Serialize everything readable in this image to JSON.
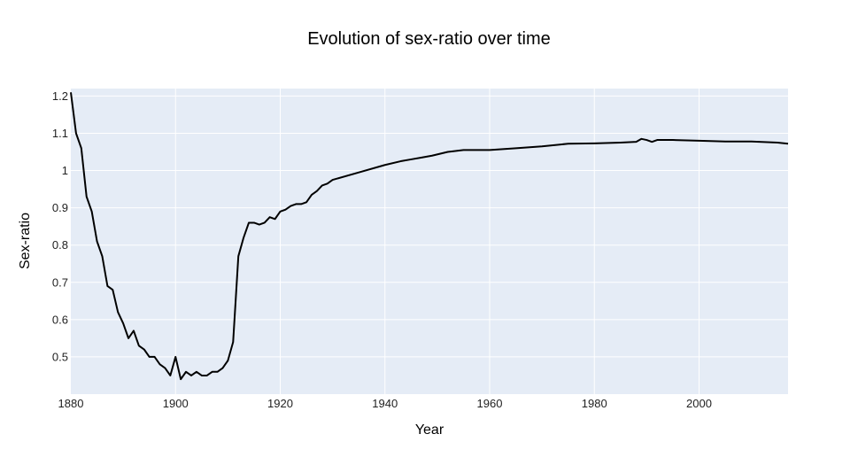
{
  "chart_data": {
    "type": "line",
    "title": "Evolution of sex-ratio over time",
    "xlabel": "Year",
    "ylabel": "Sex-ratio",
    "xlim": [
      1880,
      2017
    ],
    "ylim": [
      0.4,
      1.22
    ],
    "x_ticks": [
      1880,
      1900,
      1920,
      1940,
      1960,
      1980,
      2000
    ],
    "y_ticks": [
      0.5,
      0.6,
      0.7,
      0.8,
      0.9,
      1,
      1.1,
      1.2
    ],
    "y_tick_labels": [
      "0.5",
      "0.6",
      "0.7",
      "0.8",
      "0.9",
      "1",
      "1.1",
      "1.2"
    ],
    "grid": true,
    "colors": {
      "plot_bg": "#e5ecf6",
      "grid": "#ffffff",
      "line": "#000000"
    },
    "series": [
      {
        "x": [
          1880,
          1881,
          1882,
          1883,
          1884,
          1885,
          1886,
          1887,
          1888,
          1889,
          1890,
          1891,
          1892,
          1893,
          1894,
          1895,
          1896,
          1897,
          1898,
          1899,
          1900,
          1901,
          1902,
          1903,
          1904,
          1905,
          1906,
          1907,
          1908,
          1909,
          1910,
          1911,
          1912,
          1913,
          1914,
          1915,
          1916,
          1917,
          1918,
          1919,
          1920,
          1921,
          1922,
          1923,
          1924,
          1925,
          1926,
          1927,
          1928,
          1929,
          1930,
          1935,
          1940,
          1943,
          1945,
          1947,
          1949,
          1952,
          1955,
          1960,
          1965,
          1970,
          1975,
          1980,
          1985,
          1988,
          1989,
          1990,
          1991,
          1992,
          1995,
          2000,
          2005,
          2010,
          2015,
          2017
        ],
        "values": [
          1.21,
          1.1,
          1.06,
          0.93,
          0.89,
          0.81,
          0.77,
          0.69,
          0.68,
          0.62,
          0.59,
          0.55,
          0.57,
          0.53,
          0.52,
          0.5,
          0.5,
          0.48,
          0.47,
          0.45,
          0.5,
          0.44,
          0.46,
          0.45,
          0.46,
          0.45,
          0.45,
          0.46,
          0.46,
          0.47,
          0.49,
          0.54,
          0.77,
          0.82,
          0.86,
          0.86,
          0.855,
          0.86,
          0.875,
          0.87,
          0.89,
          0.895,
          0.905,
          0.91,
          0.91,
          0.915,
          0.935,
          0.945,
          0.96,
          0.965,
          0.975,
          0.995,
          1.015,
          1.025,
          1.03,
          1.035,
          1.04,
          1.05,
          1.055,
          1.055,
          1.06,
          1.065,
          1.072,
          1.073,
          1.075,
          1.077,
          1.085,
          1.082,
          1.077,
          1.082,
          1.082,
          1.08,
          1.078,
          1.078,
          1.075,
          1.072
        ]
      }
    ]
  }
}
